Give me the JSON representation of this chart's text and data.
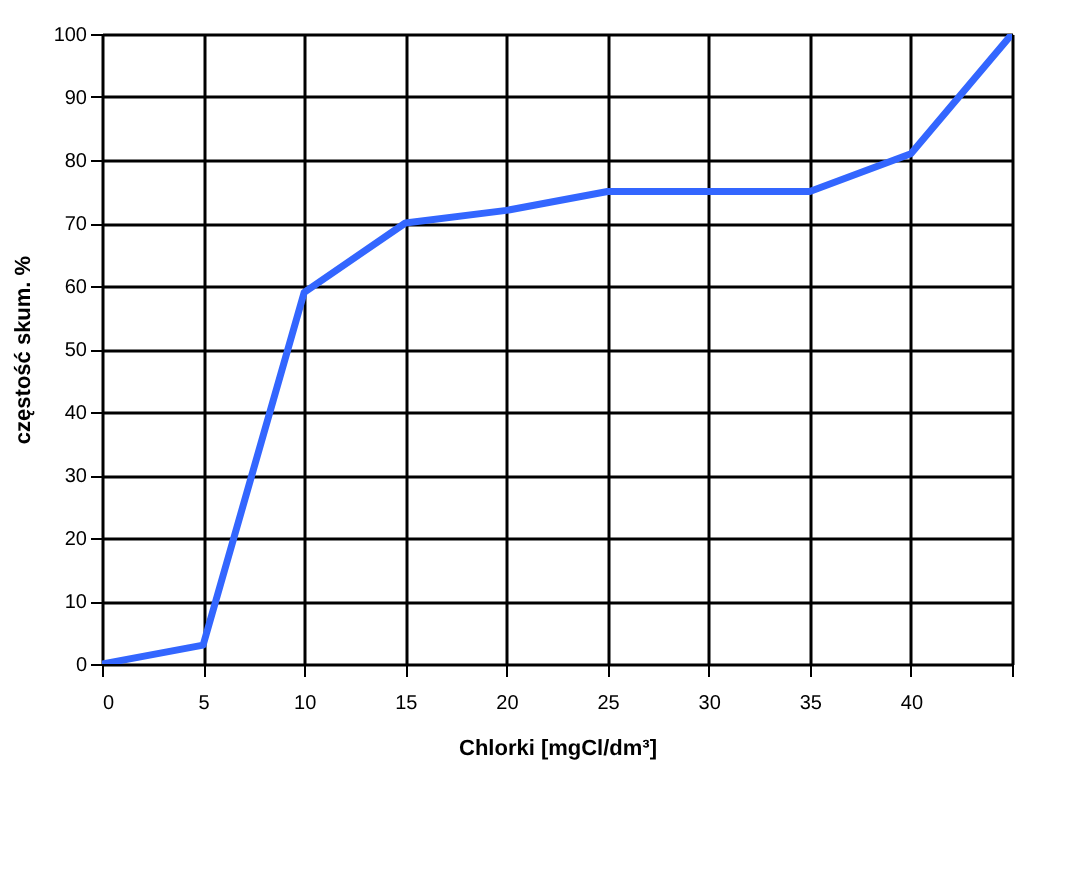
{
  "chart_data": {
    "type": "line",
    "xlabel": "Chlorki [mgCl/dm³]",
    "ylabel": "częstość skum. %",
    "x": [
      0,
      5,
      10,
      15,
      20,
      25,
      30,
      35,
      40,
      45
    ],
    "series": [
      {
        "color": "#3366ff",
        "values": [
          0,
          3,
          59,
          70,
          72,
          75,
          75,
          75,
          81,
          100
        ]
      }
    ],
    "xlim": [
      0,
      45
    ],
    "xticks": [
      0,
      5,
      10,
      15,
      20,
      25,
      30,
      35,
      40,
      {
        "value": 45,
        "label": null
      }
    ],
    "ylim": [
      0,
      100
    ],
    "yticks": [
      0,
      10,
      20,
      30,
      40,
      50,
      60,
      70,
      80,
      90,
      100
    ],
    "grid": true,
    "marker": "none",
    "line_style": "solid"
  }
}
